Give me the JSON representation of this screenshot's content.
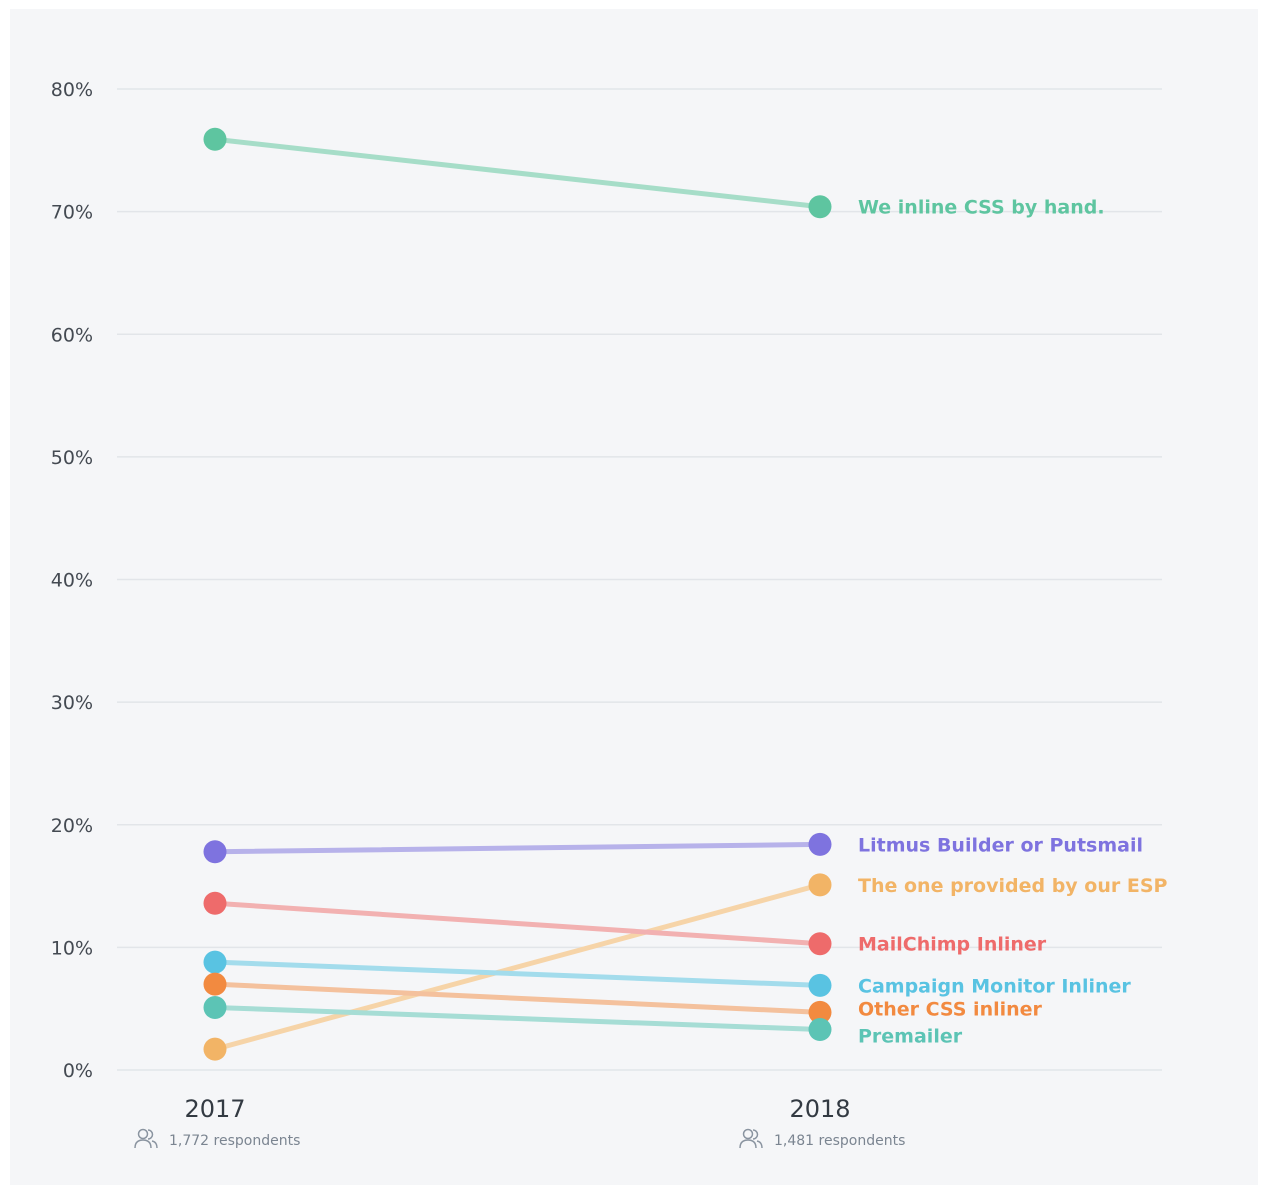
{
  "chart_data": {
    "type": "line",
    "x": [
      "2017",
      "2018"
    ],
    "ylim": [
      0,
      80
    ],
    "yticks": [
      "0%",
      "10%",
      "20%",
      "30%",
      "40%",
      "50%",
      "60%",
      "70%",
      "80%"
    ],
    "ytick_values": [
      0,
      10,
      20,
      30,
      40,
      50,
      60,
      70,
      80
    ],
    "grid": true,
    "respondents": [
      "1,772 respondents",
      "1,481 respondents"
    ],
    "series": [
      {
        "name": "We inline CSS by hand.",
        "values": [
          75.9,
          70.4
        ],
        "color": "#5ec5a0",
        "line_color": "#a6ddc8",
        "label_offset": 0
      },
      {
        "name": "Litmus Builder or Putsmail",
        "values": [
          17.8,
          18.4
        ],
        "color": "#7e73df",
        "line_color": "#b7b2ea",
        "label_offset": 0
      },
      {
        "name": "The one provided by our ESP",
        "values": [
          1.7,
          15.1
        ],
        "color": "#f2b466",
        "line_color": "#f6d4a8",
        "label_offset": 0
      },
      {
        "name": "MailChimp Inliner",
        "values": [
          13.6,
          10.3
        ],
        "color": "#ee6b6b",
        "line_color": "#f2b1b1",
        "label_offset": 0
      },
      {
        "name": "Campaign Monitor Inliner",
        "values": [
          8.8,
          6.9
        ],
        "color": "#59c3e2",
        "line_color": "#a3dcec",
        "label_offset": 0
      },
      {
        "name": "Other CSS inliner",
        "values": [
          7.0,
          4.7
        ],
        "color": "#f28a40",
        "line_color": "#f4c19d",
        "label_offset": -4
      },
      {
        "name": "Premailer",
        "values": [
          5.1,
          3.3
        ],
        "color": "#5cc4b5",
        "line_color": "#a6ddd5",
        "label_offset": 6
      }
    ]
  }
}
